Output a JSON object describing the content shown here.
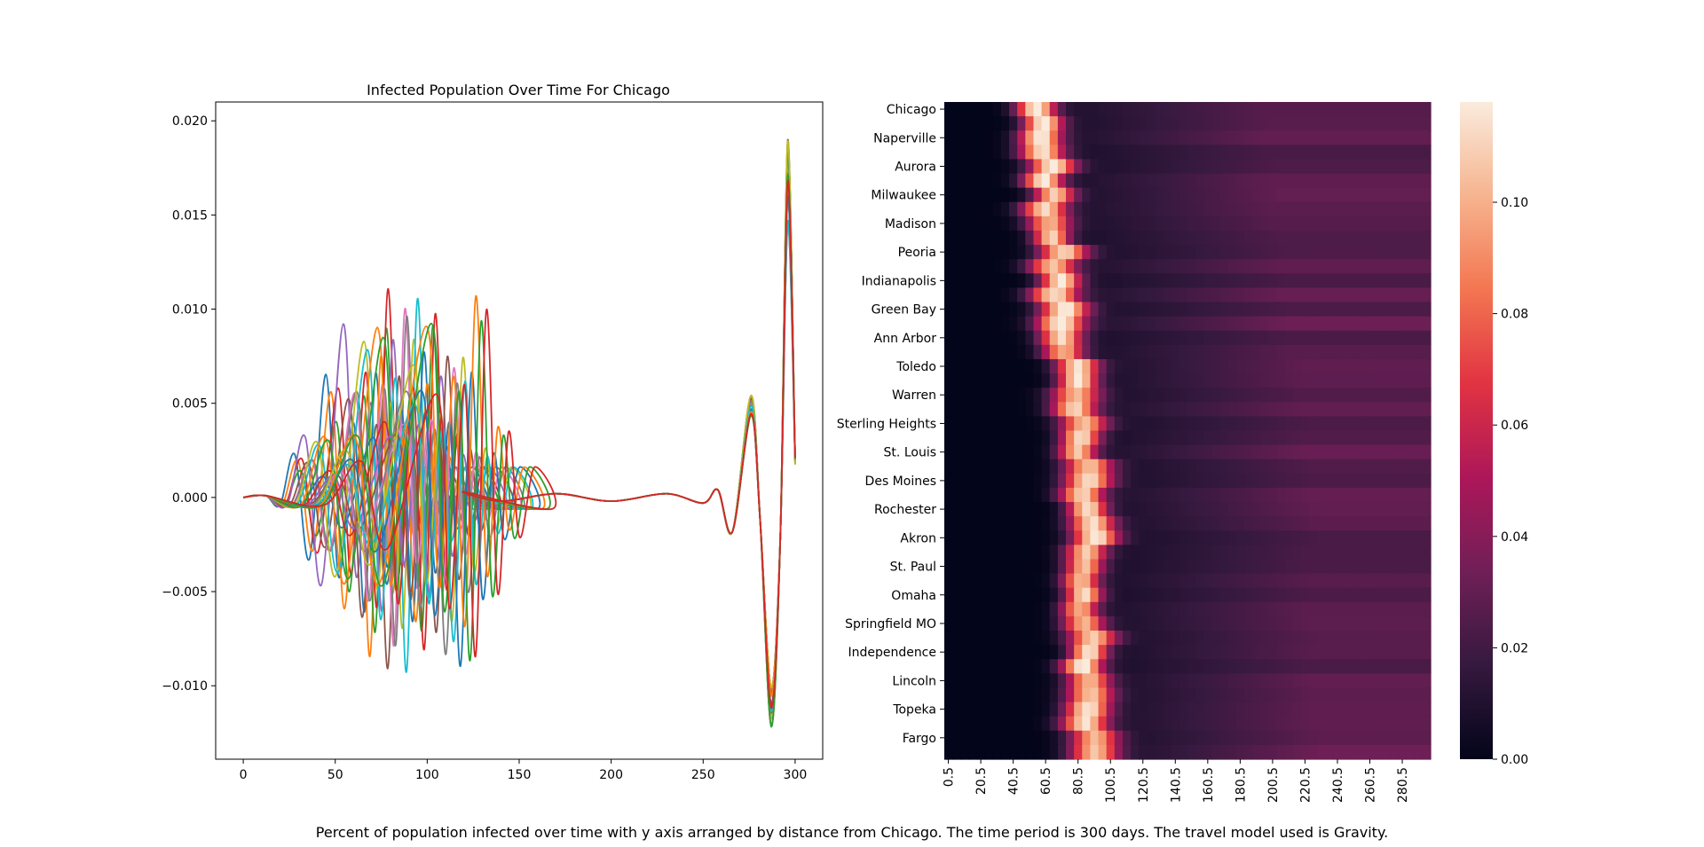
{
  "chart_data": [
    {
      "type": "line",
      "title": "Infected Population Over Time For Chicago",
      "xlabel": "",
      "ylabel": "",
      "xlim": [
        -15,
        315
      ],
      "ylim": [
        -0.0139,
        0.021
      ],
      "xticks": [
        0,
        50,
        100,
        150,
        200,
        250,
        300
      ],
      "xtick_labels": [
        "0",
        "50",
        "100",
        "150",
        "200",
        "250",
        "300"
      ],
      "yticks": [
        -0.01,
        -0.005,
        0.0,
        0.005,
        0.01,
        0.015,
        0.02
      ],
      "ytick_labels": [
        "−0.010",
        "−0.005",
        "0.000",
        "0.005",
        "0.010",
        "0.015",
        "0.020"
      ],
      "grid": false,
      "legend": "none",
      "series_count": 24,
      "series_colors": [
        "#1f77b4",
        "#ff7f0e",
        "#2ca02c",
        "#d62728",
        "#9467bd",
        "#8c564b",
        "#e377c2",
        "#7f7f7f",
        "#bcbd22",
        "#17becf"
      ],
      "x": [
        0,
        15,
        25,
        32,
        40,
        45,
        52,
        58,
        64,
        70,
        76,
        82,
        88,
        94,
        100,
        108,
        118,
        130,
        150,
        200,
        250,
        258,
        265,
        270,
        276,
        281,
        287,
        292,
        296,
        300
      ],
      "series_extremes": {
        "first_peak_max": 0.0093,
        "second_peak_max": 0.0113,
        "trough_min": -0.0094,
        "late_peak": 0.0055,
        "final_trough": -0.0123,
        "final_peak": 0.0193,
        "end_value": 0.002
      }
    },
    {
      "type": "heatmap",
      "rows": [
        "Chicago",
        "Naperville",
        "Aurora",
        "Milwaukee",
        "Madison",
        "Peoria",
        "Indianapolis",
        "Green Bay",
        "Ann Arbor",
        "Toledo",
        "Warren",
        "Sterling Heights",
        "St. Louis",
        "Des Moines",
        "Rochester",
        "Akron",
        "St. Paul",
        "Omaha",
        "Springfield MO",
        "Independence",
        "Lincoln",
        "Topeka",
        "Fargo"
      ],
      "xtick_labels": [
        "0.5",
        "20.5",
        "40.5",
        "60.5",
        "80.5",
        "100.5",
        "120.5",
        "140.5",
        "160.5",
        "180.5",
        "200.5",
        "220.5",
        "240.5",
        "260.5",
        "280.5"
      ],
      "x_range": [
        0,
        300
      ],
      "row_count": 46,
      "colorbar_range": [
        0.0,
        0.118
      ],
      "colorbar_ticks": [
        "0.00",
        "0.02",
        "0.04",
        "0.06",
        "0.08",
        "0.10"
      ],
      "colormap": "rocket",
      "colormap_stops": [
        "#03051a",
        "#35193e",
        "#701f57",
        "#ad1759",
        "#e13342",
        "#f37651",
        "#f6b48f",
        "#faebdd"
      ],
      "peak_day_first_row": 58,
      "peak_day_last_row": 88,
      "peak_value": 0.118
    }
  ],
  "caption": "Percent of population infected over time with y axis arranged by distance from Chicago. The time period is 300 days. The travel model used is Gravity."
}
